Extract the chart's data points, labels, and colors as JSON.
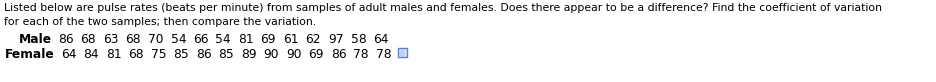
{
  "description_line1": "Listed below are pulse rates (beats per minute) from samples of adult males and females. Does there appear to be a difference? Find the coefficient of variation",
  "description_line2": "for each of the two samples; then compare the variation.",
  "male_label": "Male",
  "male_values": "86   68   63   68   70   54   66   54   81   69   61   62   97   58   64",
  "female_label": "Female",
  "female_values": "64   84   81   68   75   85   86   85   89   90   90   69   86   78   78",
  "bg_color": "#ffffff",
  "text_color": "#000000",
  "font_size_desc": 7.8,
  "font_size_data": 8.8,
  "icon_color": "#5b7fc4",
  "icon_face": "#dce6f5"
}
